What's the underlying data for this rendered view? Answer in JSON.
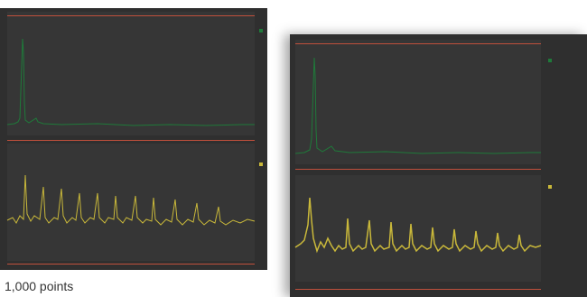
{
  "caption": "1,000 points",
  "colors": {
    "background": "#2f2f2f",
    "plot_bg": "#363636",
    "marker_red": "#c0503c",
    "spectrum_green": "#1f7a3a",
    "waveform_yellow": "#c9b83a"
  },
  "icons": {
    "channel_top": "green-square-icon",
    "channel_bottom": "yellow-square-icon"
  }
}
